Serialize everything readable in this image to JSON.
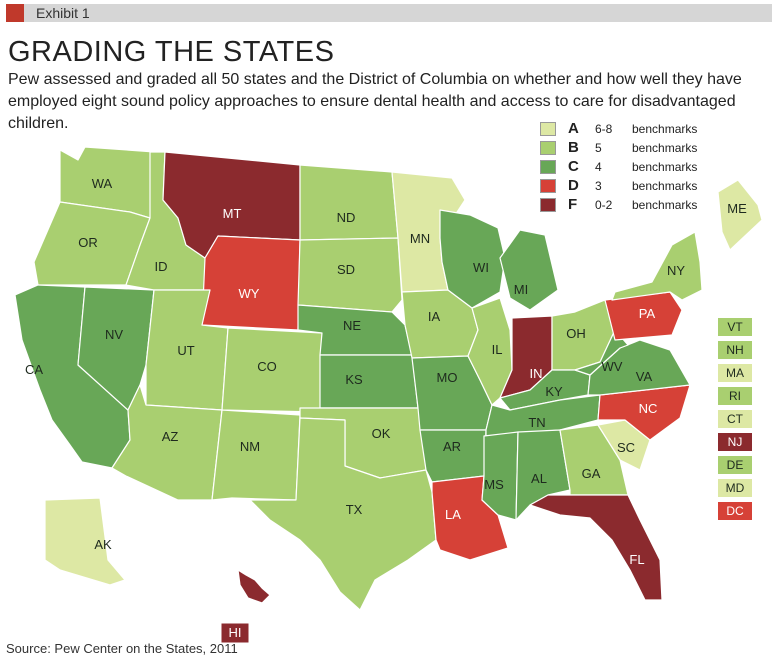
{
  "exhibit": {
    "label": "Exhibit 1"
  },
  "title": "GRADING THE STATES",
  "subtitle": "Pew assessed and graded all 50 states and the District of Columbia on whether and how well they have employed eight sound policy approaches to ensure dental health and access to care for disadvantaged children.",
  "colors": {
    "A": "#dde8a4",
    "B": "#a9cf70",
    "C": "#68a757",
    "D": "#d64137",
    "F": "#8b2a2e",
    "exhibit_accent": "#c0392b"
  },
  "legend": [
    {
      "grade": "A",
      "range": "6-8",
      "text": "benchmarks"
    },
    {
      "grade": "B",
      "range": "5",
      "text": "benchmarks"
    },
    {
      "grade": "C",
      "range": "4",
      "text": "benchmarks"
    },
    {
      "grade": "D",
      "range": "3",
      "text": "benchmarks"
    },
    {
      "grade": "F",
      "range": "0-2",
      "text": "benchmarks"
    }
  ],
  "states": [
    {
      "abbr": "WA",
      "grade": "B"
    },
    {
      "abbr": "OR",
      "grade": "B"
    },
    {
      "abbr": "CA",
      "grade": "C"
    },
    {
      "abbr": "NV",
      "grade": "C"
    },
    {
      "abbr": "ID",
      "grade": "B"
    },
    {
      "abbr": "MT",
      "grade": "F"
    },
    {
      "abbr": "WY",
      "grade": "D"
    },
    {
      "abbr": "UT",
      "grade": "B"
    },
    {
      "abbr": "AZ",
      "grade": "B"
    },
    {
      "abbr": "CO",
      "grade": "B"
    },
    {
      "abbr": "NM",
      "grade": "B"
    },
    {
      "abbr": "ND",
      "grade": "B"
    },
    {
      "abbr": "SD",
      "grade": "B"
    },
    {
      "abbr": "NE",
      "grade": "C"
    },
    {
      "abbr": "KS",
      "grade": "C"
    },
    {
      "abbr": "OK",
      "grade": "B"
    },
    {
      "abbr": "TX",
      "grade": "B"
    },
    {
      "abbr": "MN",
      "grade": "A"
    },
    {
      "abbr": "IA",
      "grade": "B"
    },
    {
      "abbr": "MO",
      "grade": "C"
    },
    {
      "abbr": "AR",
      "grade": "C"
    },
    {
      "abbr": "LA",
      "grade": "D"
    },
    {
      "abbr": "WI",
      "grade": "C"
    },
    {
      "abbr": "IL",
      "grade": "B"
    },
    {
      "abbr": "MI",
      "grade": "C"
    },
    {
      "abbr": "IN",
      "grade": "F"
    },
    {
      "abbr": "OH",
      "grade": "B"
    },
    {
      "abbr": "KY",
      "grade": "C"
    },
    {
      "abbr": "TN",
      "grade": "C"
    },
    {
      "abbr": "MS",
      "grade": "C"
    },
    {
      "abbr": "AL",
      "grade": "C"
    },
    {
      "abbr": "GA",
      "grade": "B"
    },
    {
      "abbr": "FL",
      "grade": "F"
    },
    {
      "abbr": "SC",
      "grade": "A"
    },
    {
      "abbr": "NC",
      "grade": "D"
    },
    {
      "abbr": "VA",
      "grade": "C"
    },
    {
      "abbr": "WV",
      "grade": "C"
    },
    {
      "abbr": "PA",
      "grade": "D"
    },
    {
      "abbr": "NY",
      "grade": "B"
    },
    {
      "abbr": "ME",
      "grade": "A"
    },
    {
      "abbr": "AK",
      "grade": "A"
    },
    {
      "abbr": "HI",
      "grade": "F"
    }
  ],
  "side_states": [
    {
      "abbr": "VT",
      "grade": "B"
    },
    {
      "abbr": "NH",
      "grade": "B"
    },
    {
      "abbr": "MA",
      "grade": "A"
    },
    {
      "abbr": "RI",
      "grade": "B"
    },
    {
      "abbr": "CT",
      "grade": "A"
    },
    {
      "abbr": "NJ",
      "grade": "F"
    },
    {
      "abbr": "DE",
      "grade": "B"
    },
    {
      "abbr": "MD",
      "grade": "A"
    },
    {
      "abbr": "DC",
      "grade": "D"
    }
  ],
  "source": "Source: Pew Center on the States, 2011"
}
